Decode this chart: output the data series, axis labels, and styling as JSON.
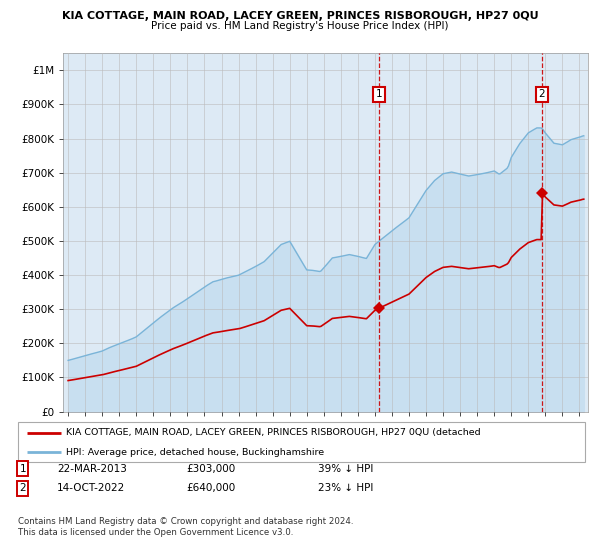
{
  "title": "KIA COTTAGE, MAIN ROAD, LACEY GREEN, PRINCES RISBOROUGH, HP27 0QU",
  "subtitle": "Price paid vs. HM Land Registry's House Price Index (HPI)",
  "legend_line1": "KIA COTTAGE, MAIN ROAD, LACEY GREEN, PRINCES RISBOROUGH, HP27 0QU (detached",
  "legend_line2": "HPI: Average price, detached house, Buckinghamshire",
  "annotation1_date": "22-MAR-2013",
  "annotation1_price": "£303,000",
  "annotation1_pct": "39% ↓ HPI",
  "annotation2_date": "14-OCT-2022",
  "annotation2_price": "£640,000",
  "annotation2_pct": "23% ↓ HPI",
  "footer": "Contains HM Land Registry data © Crown copyright and database right 2024.\nThis data is licensed under the Open Government Licence v3.0.",
  "hpi_color": "#7ab4d8",
  "hpi_fill_color": "#c8dff0",
  "price_color": "#cc0000",
  "bg_color": "#ddeaf5",
  "plot_bg": "#ffffff",
  "dashed_color": "#cc0000",
  "ylim": [
    0,
    1050000
  ],
  "yticks": [
    0,
    100000,
    200000,
    300000,
    400000,
    500000,
    600000,
    700000,
    800000,
    900000,
    1000000
  ],
  "ytick_labels": [
    "£0",
    "£100K",
    "£200K",
    "£300K",
    "£400K",
    "£500K",
    "£600K",
    "£700K",
    "£800K",
    "£900K",
    "£1M"
  ],
  "xstart": 1995,
  "xend": 2025,
  "xticks": [
    1995,
    1996,
    1997,
    1998,
    1999,
    2000,
    2001,
    2002,
    2003,
    2004,
    2005,
    2006,
    2007,
    2008,
    2009,
    2010,
    2011,
    2012,
    2013,
    2014,
    2015,
    2016,
    2017,
    2018,
    2019,
    2020,
    2021,
    2022,
    2023,
    2024,
    2025
  ],
  "point1_x": 2013.22,
  "point1_y": 303000,
  "point2_x": 2022.79,
  "point2_y": 640000
}
